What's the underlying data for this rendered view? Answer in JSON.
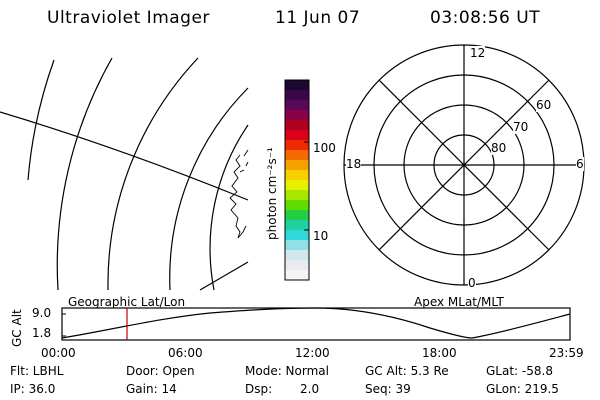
{
  "header": {
    "instrument": "Ultraviolet Imager",
    "date": "11 Jun 07",
    "time": "03:08:56 UT"
  },
  "colorbar": {
    "unit_label": "photon cm⁻²s⁻¹",
    "tick_labels": [
      "100",
      "10"
    ],
    "colors": [
      "#1a0a30",
      "#3a0848",
      "#5a0858",
      "#8a0044",
      "#b00020",
      "#d8001a",
      "#ef2a00",
      "#f56a00",
      "#f8a000",
      "#f8d000",
      "#e8f000",
      "#a8e800",
      "#60dc00",
      "#20d040",
      "#20d0a0",
      "#30d8d8",
      "#90e0e8",
      "#cfe8ee",
      "#e8ecef",
      "#f4f4f4"
    ]
  },
  "polar_plot": {
    "mlt_labels": {
      "top": "12",
      "left": "18",
      "right": "6",
      "bottom": "0"
    },
    "lat_labels": [
      "60",
      "70",
      "80"
    ]
  },
  "timeline": {
    "left_label": "Geographic Lat/Lon",
    "right_label": "Apex MLat/MLT",
    "y_axis_title": "GC Alt",
    "y_ticks": [
      "9.0",
      "1.8"
    ],
    "x_ticks": [
      "00:00",
      "06:00",
      "12:00",
      "18:00",
      "23:59"
    ],
    "current_time_marker_color": "#c00000"
  },
  "status": {
    "filter": "Flt: LBHL",
    "door": "Door: Open",
    "mode": "Mode: Normal",
    "gc_alt": "GC Alt: 5.3 Re",
    "glat": "GLat: -58.8",
    "ip": "IP: 36.0",
    "gain": "Gain: 14",
    "dsp_label": "Dsp:",
    "dsp_value": "2.0",
    "seq": "Seq: 39",
    "glon": "GLon: 219.5"
  }
}
